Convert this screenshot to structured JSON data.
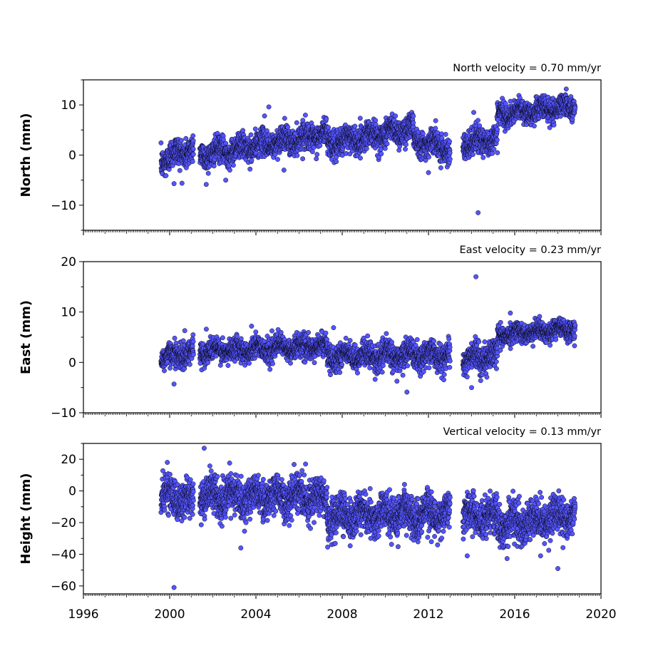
{
  "chart_data": [
    {
      "type": "scatter",
      "title": "North velocity = 0.70 mm/yr",
      "ylabel": "North (mm)",
      "xlim": [
        1996,
        2020
      ],
      "ylim": [
        -15,
        15
      ],
      "yticks": [
        -10,
        0,
        10
      ],
      "yticklabels": [
        "−10",
        "0",
        "10"
      ],
      "marker_color": "#5555ff",
      "marker_edge": "#000000",
      "segments": [
        {
          "x": [
            1999.6,
            2001.1
          ],
          "y": [
            -1.0,
            1.5
          ],
          "spread": 1.6
        },
        {
          "x": [
            2001.4,
            2007.3
          ],
          "y": [
            0.0,
            4.2
          ],
          "spread": 1.4
        },
        {
          "x": [
            2007.3,
            2011.3
          ],
          "y": [
            2.2,
            5.5
          ],
          "spread": 1.5
        },
        {
          "x": [
            2011.3,
            2013.0
          ],
          "y": [
            3.0,
            1.5
          ],
          "spread": 1.4
        },
        {
          "x": [
            2013.6,
            2015.2
          ],
          "y": [
            2.0,
            3.5
          ],
          "spread": 1.5
        },
        {
          "x": [
            2015.2,
            2018.8
          ],
          "y": [
            8.0,
            9.8
          ],
          "spread": 1.2
        }
      ],
      "outliers": [
        {
          "x": 2000.2,
          "y": -5.7
        },
        {
          "x": 2002.6,
          "y": -5.0
        },
        {
          "x": 2004.6,
          "y": 9.6
        },
        {
          "x": 2004.4,
          "y": 7.8
        },
        {
          "x": 2005.3,
          "y": -3.0
        },
        {
          "x": 2012.0,
          "y": -3.5
        },
        {
          "x": 2014.3,
          "y": -11.5
        },
        {
          "x": 2014.1,
          "y": 8.5
        }
      ]
    },
    {
      "type": "scatter",
      "title": "East velocity = 0.23 mm/yr",
      "ylabel": "East (mm)",
      "xlim": [
        1996,
        2020
      ],
      "ylim": [
        -10,
        20
      ],
      "yticks": [
        -10,
        0,
        10,
        20
      ],
      "yticklabels": [
        "−10",
        "0",
        "10",
        "20"
      ],
      "marker_color": "#5555ff",
      "marker_edge": "#000000",
      "segments": [
        {
          "x": [
            1999.6,
            2001.1
          ],
          "y": [
            1.0,
            2.0
          ],
          "spread": 1.3
        },
        {
          "x": [
            2001.4,
            2007.3
          ],
          "y": [
            2.2,
            3.2
          ],
          "spread": 1.2
        },
        {
          "x": [
            2007.3,
            2013.0
          ],
          "y": [
            1.2,
            1.5
          ],
          "spread": 1.4
        },
        {
          "x": [
            2013.6,
            2015.2
          ],
          "y": [
            0.5,
            1.5
          ],
          "spread": 1.4
        },
        {
          "x": [
            2015.2,
            2018.8
          ],
          "y": [
            5.5,
            6.8
          ],
          "spread": 1.0
        }
      ],
      "outliers": [
        {
          "x": 2000.2,
          "y": -4.3
        },
        {
          "x": 2000.7,
          "y": 6.3
        },
        {
          "x": 2001.7,
          "y": 6.6
        },
        {
          "x": 2003.8,
          "y": 7.2
        },
        {
          "x": 2007.6,
          "y": 6.9
        },
        {
          "x": 2011.0,
          "y": -5.9
        },
        {
          "x": 2014.2,
          "y": 17.0
        },
        {
          "x": 2014.0,
          "y": -5.0
        },
        {
          "x": 2015.8,
          "y": 9.8
        }
      ]
    },
    {
      "type": "scatter",
      "title": "Vertical velocity = 0.13 mm/yr",
      "ylabel": "Height (mm)",
      "xlabel": "",
      "xlim": [
        1996,
        2020
      ],
      "ylim": [
        -65,
        30
      ],
      "yticks": [
        -60,
        -40,
        -20,
        0,
        20
      ],
      "yticklabels": [
        "−60",
        "−40",
        "−20",
        "0",
        "20"
      ],
      "xticks": [
        1996,
        2000,
        2004,
        2008,
        2012,
        2016,
        2020
      ],
      "xticklabels": [
        "1996",
        "2000",
        "2004",
        "2008",
        "2012",
        "2016",
        "2020"
      ],
      "marker_color": "#5555ff",
      "marker_edge": "#000000",
      "segments": [
        {
          "x": [
            1999.6,
            2001.1
          ],
          "y": [
            -3,
            -6
          ],
          "spread": 6.5
        },
        {
          "x": [
            2001.4,
            2007.3
          ],
          "y": [
            -4,
            -3
          ],
          "spread": 6.5
        },
        {
          "x": [
            2007.3,
            2013.0
          ],
          "y": [
            -16,
            -14
          ],
          "spread": 6.5
        },
        {
          "x": [
            2013.6,
            2015.2
          ],
          "y": [
            -15,
            -16
          ],
          "spread": 6.5
        },
        {
          "x": [
            2015.2,
            2018.8
          ],
          "y": [
            -22,
            -15
          ],
          "spread": 6.5
        }
      ],
      "outliers": [
        {
          "x": 2000.2,
          "y": -61
        },
        {
          "x": 2001.6,
          "y": 27
        },
        {
          "x": 2006.3,
          "y": 17
        },
        {
          "x": 2003.3,
          "y": -36
        },
        {
          "x": 2013.8,
          "y": -41
        },
        {
          "x": 2018.0,
          "y": -49
        },
        {
          "x": 2017.2,
          "y": -41
        }
      ]
    }
  ]
}
